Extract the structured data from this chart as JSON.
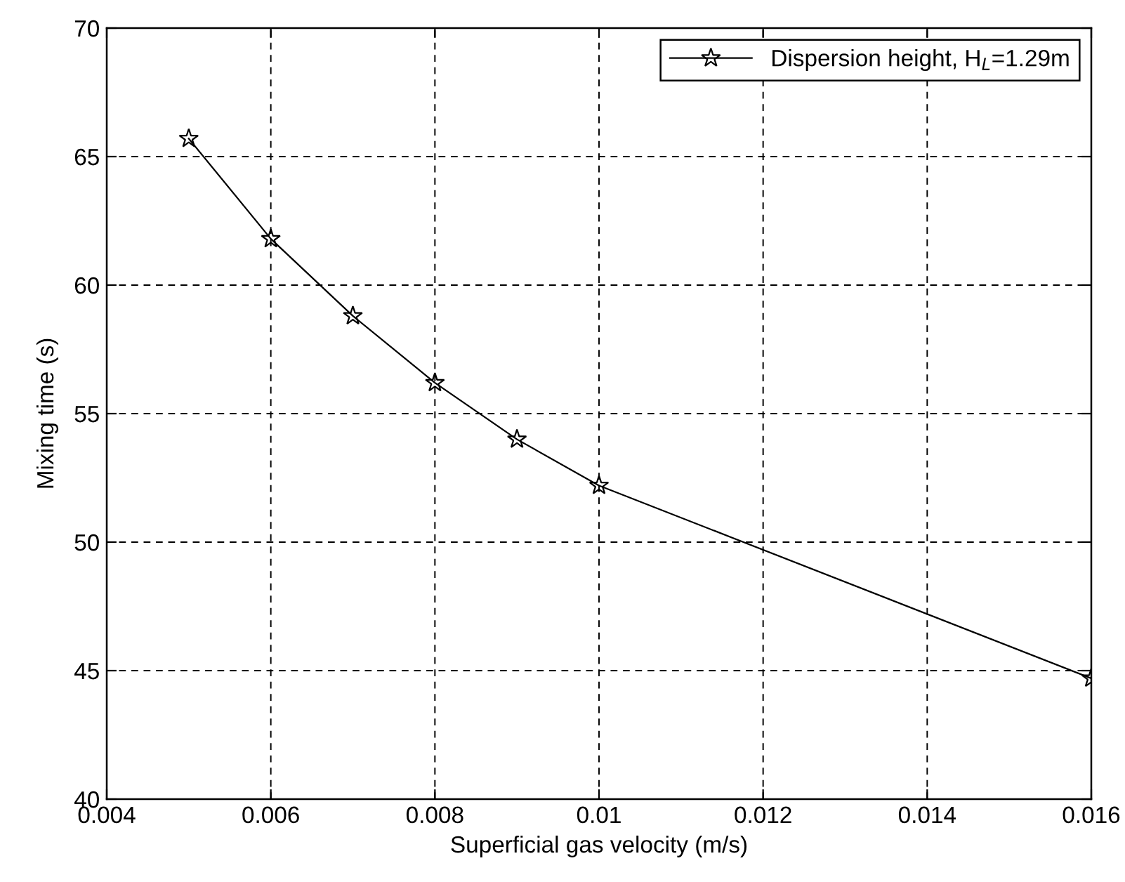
{
  "chart_data": {
    "type": "line",
    "xlabel": "Superficial gas velocity (m/s)",
    "ylabel": "Mixing time (s)",
    "x": [
      0.005,
      0.006,
      0.007,
      0.008,
      0.009,
      0.01,
      0.016
    ],
    "series": [
      {
        "name": "Dispersion height, H$_{L}$=1.29m",
        "color": "#000000",
        "values": [
          65.7,
          61.8,
          58.8,
          56.2,
          54.0,
          52.2,
          44.7
        ]
      }
    ],
    "xlim": [
      0.004,
      0.016
    ],
    "xticks": [
      0.004,
      0.006,
      0.008,
      0.01,
      0.012,
      0.014,
      0.016
    ],
    "ylim": [
      40,
      70
    ],
    "yticks": [
      40,
      45,
      50,
      55,
      60,
      65,
      70
    ],
    "grid": true,
    "legend": "top right",
    "marker": "star",
    "line_style": "solid"
  }
}
